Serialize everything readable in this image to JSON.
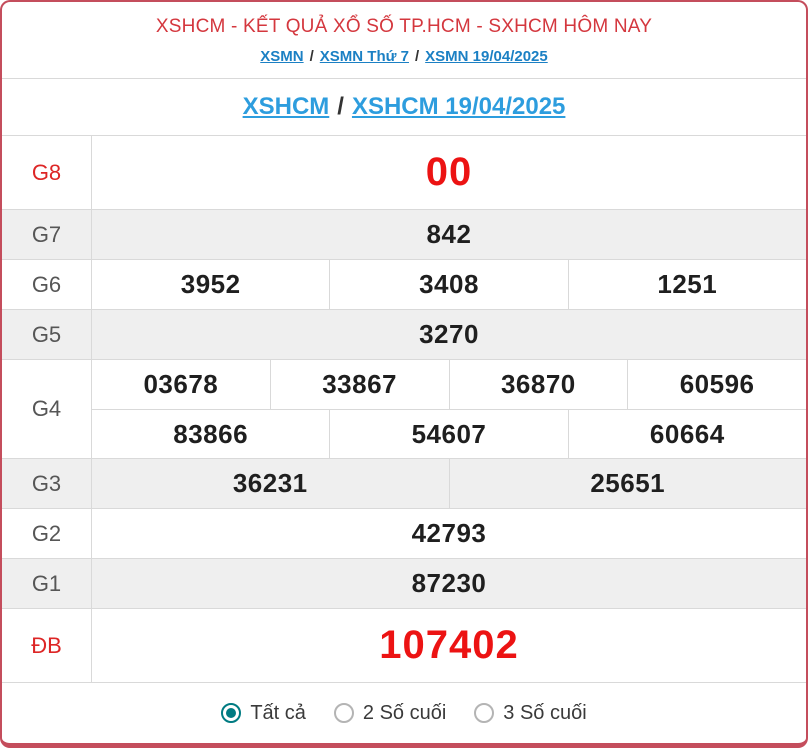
{
  "header": {
    "title": "XSHCM - KẾT QUẢ XỔ SỐ TP.HCM - SXHCM HÔM NAY",
    "breadcrumb": [
      "XSMN",
      "XSMN Thứ 7",
      "XSMN 19/04/2025"
    ],
    "separator": "/"
  },
  "subheader": {
    "links": [
      "XSHCM",
      "XSHCM 19/04/2025"
    ],
    "separator": "/"
  },
  "results": {
    "rows": [
      {
        "label": "G8",
        "big": true,
        "groups": [
          [
            "00"
          ]
        ]
      },
      {
        "label": "G7",
        "big": false,
        "groups": [
          [
            "842"
          ]
        ]
      },
      {
        "label": "G6",
        "big": false,
        "groups": [
          [
            "3952",
            "3408",
            "1251"
          ]
        ]
      },
      {
        "label": "G5",
        "big": false,
        "groups": [
          [
            "3270"
          ]
        ]
      },
      {
        "label": "G4",
        "big": false,
        "groups": [
          [
            "03678",
            "33867",
            "36870",
            "60596"
          ],
          [
            "83866",
            "54607",
            "60664"
          ]
        ]
      },
      {
        "label": "G3",
        "big": false,
        "groups": [
          [
            "36231",
            "25651"
          ]
        ]
      },
      {
        "label": "G2",
        "big": false,
        "groups": [
          [
            "42793"
          ]
        ]
      },
      {
        "label": "G1",
        "big": false,
        "groups": [
          [
            "87230"
          ]
        ]
      },
      {
        "label": "ĐB",
        "big": true,
        "groups": [
          [
            "107402"
          ]
        ]
      }
    ]
  },
  "filter": {
    "options": [
      {
        "label": "Tất cả",
        "selected": true
      },
      {
        "label": "2 Số cuối",
        "selected": false
      },
      {
        "label": "3 Số cuối",
        "selected": false
      }
    ]
  },
  "colors": {
    "card-border": "#c44d5c",
    "header-red": "#d4373e",
    "highlight-red": "#ec1313",
    "label-red": "#dd2626",
    "breadcrumb-blue": "#1b80c4",
    "title-blue": "#2d9dde",
    "shaded-row": "#efefef",
    "grid-line": "#d9d9d9",
    "label-gray": "#565656",
    "number-dark": "#1f1f1f",
    "radio-teal": "#007b82",
    "radio-gray": "#b4b4b4",
    "filter-text": "#3a3a3a"
  }
}
